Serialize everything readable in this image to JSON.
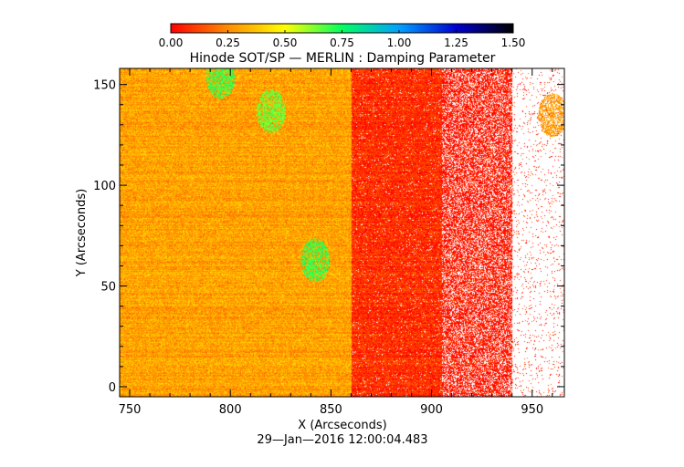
{
  "chart_data": {
    "type": "heatmap",
    "title": "Hinode SOT/SP — MERLIN : Damping Parameter",
    "xlabel": "X (Arcseconds)",
    "ylabel": "Y (Arcseconds)",
    "timestamp": "29—Jan—2016 12:00:04.483",
    "xlim": [
      745,
      966
    ],
    "ylim": [
      -5,
      158
    ],
    "x_ticks": [
      "750",
      "800",
      "850",
      "900",
      "950"
    ],
    "x_tick_values": [
      750,
      800,
      850,
      900,
      950
    ],
    "y_ticks": [
      "0",
      "50",
      "100",
      "150"
    ],
    "y_tick_values": [
      0,
      50,
      100,
      150
    ],
    "colorbar": {
      "range": [
        0.0,
        1.5
      ],
      "tick_labels": [
        "0.00",
        "0.25",
        "0.50",
        "0.75",
        "1.00",
        "1.25",
        "1.50"
      ],
      "tick_values": [
        0.0,
        0.25,
        0.5,
        0.75,
        1.0,
        1.25,
        1.5
      ],
      "colors": [
        "#ff0000",
        "#ff8c00",
        "#ffff00",
        "#00ff60",
        "#00a0ff",
        "#0000d0",
        "#000000"
      ]
    },
    "regions": [
      {
        "x": [
          745,
          860
        ],
        "y": [
          -5,
          158
        ],
        "typical_value": 0.3
      },
      {
        "x": [
          860,
          905
        ],
        "y": [
          -5,
          158
        ],
        "typical_value": 0.08
      },
      {
        "x": [
          905,
          940
        ],
        "y": [
          -5,
          158
        ],
        "typical_value": 0.03
      },
      {
        "x": [
          940,
          966
        ],
        "y": [
          -5,
          158
        ],
        "typical_value": null
      }
    ],
    "features": [
      {
        "x": 842,
        "y": 63,
        "value": 0.7
      },
      {
        "x": 820,
        "y": 137,
        "value": 0.65
      },
      {
        "x": 795,
        "y": 154,
        "value": 0.7
      },
      {
        "x": 960,
        "y": 135,
        "value": 0.28
      }
    ]
  }
}
